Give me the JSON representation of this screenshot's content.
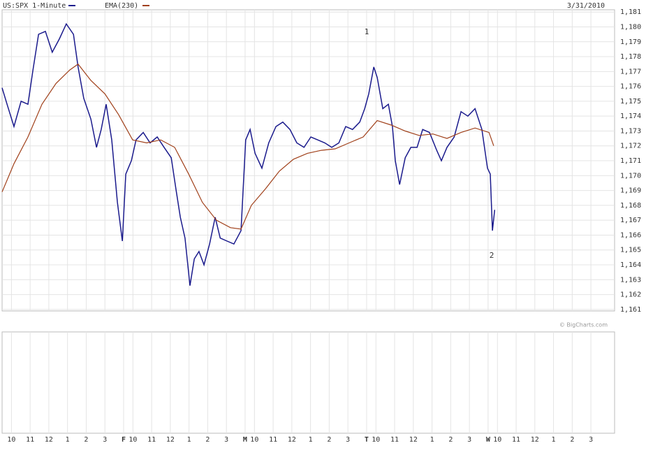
{
  "chart_data": {
    "type": "line",
    "title": "US:SPX 1-Minute",
    "date": "3/31/2010",
    "credit": "© BigCharts.com",
    "annotations": [
      "1",
      "2"
    ],
    "series": [
      {
        "name": "US:SPX 1-Minute",
        "color": "#1a1a8c",
        "x": [
          0,
          16,
          38,
          61,
          83,
          99,
          117,
          139,
          161,
          184,
          206,
          229,
          244,
          262,
          285,
          303,
          318,
          334,
          352,
          370,
          386,
          397,
          415,
          430,
          453,
          475,
          498,
          520,
          543,
          558,
          572,
          587,
          603,
          617,
          632,
          648,
          666,
          684,
          700,
          722,
          744,
          767,
          782,
          796,
          812,
          834,
          856,
          879,
          901,
          924,
          946,
          969,
          991,
          1013,
          1036,
          1058,
          1081,
          1103,
          1125,
          1148,
          1164,
          1177,
          1193,
          1204,
          1222,
          1240,
          1253,
          1262,
          1276,
          1294,
          1312,
          1332,
          1350,
          1372,
          1395,
          1410,
          1428,
          1451,
          1473,
          1495,
          1518,
          1540,
          1558,
          1567,
          1574,
          1581
        ],
        "values": [
          1175.9,
          1174.8,
          1173.3,
          1175,
          1174.8,
          1177.1,
          1179.5,
          1179.7,
          1178.3,
          1179.2,
          1180.2,
          1179.5,
          1177.3,
          1175.2,
          1173.8,
          1171.9,
          1173.1,
          1174.8,
          1172.4,
          1168.2,
          1165.6,
          1170.1,
          1171,
          1172.4,
          1172.9,
          1172.2,
          1172.6,
          1171.9,
          1171.2,
          1169.1,
          1167.2,
          1165.8,
          1162.6,
          1164.4,
          1164.9,
          1164,
          1165.4,
          1167.2,
          1165.8,
          1165.6,
          1165.4,
          1166.3,
          1172.4,
          1173.1,
          1171.5,
          1170.5,
          1172.2,
          1173.3,
          1173.6,
          1173.1,
          1172.2,
          1171.9,
          1172.6,
          1172.4,
          1172.2,
          1171.9,
          1172.2,
          1173.3,
          1173.1,
          1173.6,
          1174.5,
          1175.5,
          1177.3,
          1176.6,
          1174.5,
          1174.8,
          1173.3,
          1171,
          1169.4,
          1171.2,
          1171.9,
          1171.9,
          1173.1,
          1172.9,
          1171.7,
          1171,
          1171.9,
          1172.6,
          1174.3,
          1174,
          1174.5,
          1173.1,
          1170.5,
          1170.1,
          1166.3,
          1167.7
        ]
      },
      {
        "name": "EMA(230)",
        "color": "#a0401a",
        "x": [
          0,
          38,
          83,
          128,
          173,
          217,
          244,
          285,
          330,
          374,
          419,
          464,
          509,
          554,
          599,
          643,
          688,
          733,
          767,
          800,
          845,
          890,
          935,
          980,
          1025,
          1069,
          1114,
          1159,
          1204,
          1249,
          1294,
          1338,
          1383,
          1428,
          1473,
          1518,
          1563,
          1578
        ],
        "values": [
          1168.9,
          1170.8,
          1172.6,
          1174.8,
          1176.2,
          1177.1,
          1177.5,
          1176.4,
          1175.5,
          1174.1,
          1172.4,
          1172.2,
          1172.4,
          1171.9,
          1170.1,
          1168.2,
          1167,
          1166.5,
          1166.4,
          1168,
          1169.1,
          1170.3,
          1171.1,
          1171.5,
          1171.7,
          1171.8,
          1172.2,
          1172.6,
          1173.7,
          1173.4,
          1173,
          1172.7,
          1172.8,
          1172.5,
          1172.9,
          1173.2,
          1172.9,
          1172
        ]
      }
    ],
    "xlim": [
      0,
      1966
    ],
    "xticks": [
      {
        "value": 30,
        "label": "10"
      },
      {
        "value": 90,
        "label": "11"
      },
      {
        "value": 150,
        "label": "12"
      },
      {
        "value": 210,
        "label": "1"
      },
      {
        "value": 270,
        "label": "2"
      },
      {
        "value": 330,
        "label": "3"
      },
      {
        "value": 390,
        "label": "F"
      },
      {
        "value": 420,
        "label": "10"
      },
      {
        "value": 480,
        "label": "11"
      },
      {
        "value": 540,
        "label": "12"
      },
      {
        "value": 600,
        "label": "1"
      },
      {
        "value": 660,
        "label": "2"
      },
      {
        "value": 720,
        "label": "3"
      },
      {
        "value": 780,
        "label": "M"
      },
      {
        "value": 810,
        "label": "10"
      },
      {
        "value": 870,
        "label": "11"
      },
      {
        "value": 930,
        "label": "12"
      },
      {
        "value": 990,
        "label": "1"
      },
      {
        "value": 1050,
        "label": "2"
      },
      {
        "value": 1110,
        "label": "3"
      },
      {
        "value": 1170,
        "label": "T"
      },
      {
        "value": 1200,
        "label": "10"
      },
      {
        "value": 1260,
        "label": "11"
      },
      {
        "value": 1320,
        "label": "12"
      },
      {
        "value": 1380,
        "label": "1"
      },
      {
        "value": 1440,
        "label": "2"
      },
      {
        "value": 1500,
        "label": "3"
      },
      {
        "value": 1560,
        "label": "W"
      },
      {
        "value": 1590,
        "label": "10"
      },
      {
        "value": 1650,
        "label": "11"
      },
      {
        "value": 1710,
        "label": "12"
      },
      {
        "value": 1770,
        "label": "1"
      },
      {
        "value": 1830,
        "label": "2"
      },
      {
        "value": 1890,
        "label": "3"
      }
    ],
    "ylim": [
      1160.9,
      1181.15
    ],
    "yticks": [
      {
        "value": 1161,
        "label": "1,161"
      },
      {
        "value": 1162,
        "label": "1,162"
      },
      {
        "value": 1163,
        "label": "1,163"
      },
      {
        "value": 1164,
        "label": "1,164"
      },
      {
        "value": 1165,
        "label": "1,165"
      },
      {
        "value": 1166,
        "label": "1,166"
      },
      {
        "value": 1167,
        "label": "1,167"
      },
      {
        "value": 1168,
        "label": "1,168"
      },
      {
        "value": 1169,
        "label": "1,169"
      },
      {
        "value": 1170,
        "label": "1,170"
      },
      {
        "value": 1171,
        "label": "1,171"
      },
      {
        "value": 1172,
        "label": "1,172"
      },
      {
        "value": 1173,
        "label": "1,173"
      },
      {
        "value": 1174,
        "label": "1,174"
      },
      {
        "value": 1175,
        "label": "1,175"
      },
      {
        "value": 1176,
        "label": "1,176"
      },
      {
        "value": 1177,
        "label": "1,177"
      },
      {
        "value": 1178,
        "label": "1,178"
      },
      {
        "value": 1179,
        "label": "1,179"
      },
      {
        "value": 1180,
        "label": "1,180"
      },
      {
        "value": 1181,
        "label": "1,181"
      }
    ],
    "grid": true
  }
}
